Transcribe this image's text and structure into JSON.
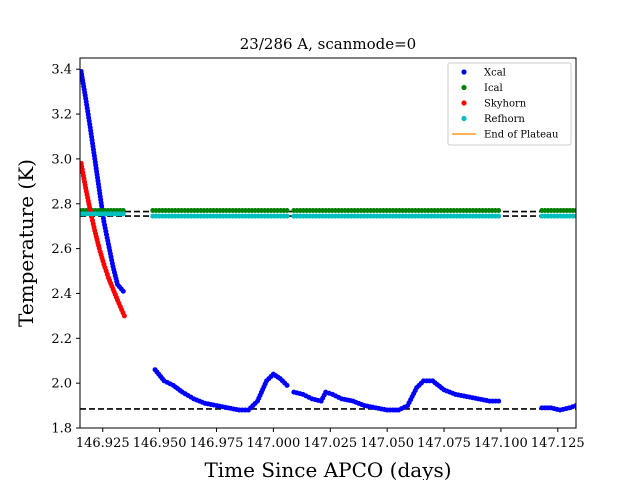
{
  "chart_data": {
    "type": "scatter",
    "title": "23/286 A, scanmode=0",
    "xlabel": "Time Since APCO (days)",
    "ylabel": "Temperature (K)",
    "xlim": [
      146.915,
      147.133
    ],
    "ylim": [
      1.8,
      3.45
    ],
    "xticks": [
      146.925,
      146.95,
      146.975,
      147.0,
      147.025,
      147.05,
      147.075,
      147.1,
      147.125
    ],
    "xtick_labels": [
      "146.925",
      "146.950",
      "146.975",
      "147.000",
      "147.025",
      "147.050",
      "147.075",
      "147.100",
      "147.125"
    ],
    "yticks": [
      1.8,
      2.0,
      2.2,
      2.4,
      2.6,
      2.8,
      3.0,
      3.2,
      3.4
    ],
    "ytick_labels": [
      "1.8",
      "2.0",
      "2.2",
      "2.4",
      "2.6",
      "2.8",
      "3.0",
      "3.2",
      "3.4"
    ],
    "grid": false,
    "legend_position": "top-right",
    "series": [
      {
        "name": "Xcal",
        "color": "#0000ff",
        "segments": [
          [
            [
              146.9155,
              3.39
            ],
            [
              146.9175,
              3.27
            ],
            [
              146.9195,
              3.14
            ],
            [
              146.9215,
              3.0
            ],
            [
              146.9235,
              2.86
            ],
            [
              146.9255,
              2.72
            ],
            [
              146.9275,
              2.62
            ],
            [
              146.9295,
              2.52
            ],
            [
              146.9315,
              2.44
            ],
            [
              146.934,
              2.41
            ]
          ],
          [
            [
              146.948,
              2.06
            ],
            [
              146.952,
              2.01
            ],
            [
              146.956,
              1.99
            ],
            [
              146.96,
              1.96
            ],
            [
              146.965,
              1.93
            ],
            [
              146.97,
              1.91
            ],
            [
              146.975,
              1.9
            ],
            [
              146.98,
              1.89
            ],
            [
              146.985,
              1.88
            ],
            [
              146.989,
              1.88
            ],
            [
              146.993,
              1.92
            ],
            [
              146.997,
              2.01
            ],
            [
              147.0,
              2.04
            ],
            [
              147.003,
              2.02
            ],
            [
              147.006,
              1.99
            ]
          ],
          [
            [
              147.009,
              1.96
            ],
            [
              147.013,
              1.95
            ],
            [
              147.017,
              1.93
            ],
            [
              147.021,
              1.92
            ],
            [
              147.023,
              1.96
            ],
            [
              147.026,
              1.95
            ],
            [
              147.03,
              1.93
            ],
            [
              147.035,
              1.92
            ],
            [
              147.04,
              1.9
            ],
            [
              147.045,
              1.89
            ],
            [
              147.05,
              1.88
            ],
            [
              147.055,
              1.88
            ],
            [
              147.059,
              1.9
            ],
            [
              147.063,
              1.98
            ],
            [
              147.066,
              2.01
            ],
            [
              147.07,
              2.01
            ],
            [
              147.075,
              1.97
            ],
            [
              147.08,
              1.95
            ],
            [
              147.085,
              1.94
            ],
            [
              147.09,
              1.93
            ],
            [
              147.095,
              1.92
            ],
            [
              147.099,
              1.92
            ]
          ],
          [
            [
              147.118,
              1.89
            ],
            [
              147.122,
              1.89
            ],
            [
              147.126,
              1.88
            ],
            [
              147.13,
              1.89
            ],
            [
              147.133,
              1.9
            ]
          ]
        ]
      },
      {
        "name": "Ical",
        "color": "#008000",
        "segments": [
          [
            [
              146.915,
              2.77
            ],
            [
              146.934,
              2.77
            ]
          ],
          [
            [
              146.947,
              2.77
            ],
            [
              147.006,
              2.77
            ]
          ],
          [
            [
              147.009,
              2.77
            ],
            [
              147.099,
              2.77
            ]
          ],
          [
            [
              147.118,
              2.77
            ],
            [
              147.133,
              2.77
            ]
          ]
        ]
      },
      {
        "name": "Skyhorn",
        "color": "#ff0000",
        "segments": [
          [
            [
              146.9155,
              2.98
            ],
            [
              146.9175,
              2.87
            ],
            [
              146.9195,
              2.77
            ],
            [
              146.9215,
              2.68
            ],
            [
              146.9235,
              2.6
            ],
            [
              146.9255,
              2.53
            ],
            [
              146.9275,
              2.47
            ],
            [
              146.9295,
              2.42
            ],
            [
              146.9315,
              2.37
            ],
            [
              146.9345,
              2.3
            ]
          ]
        ]
      },
      {
        "name": "Refhorn",
        "color": "#00bfbf",
        "segments": [
          [
            [
              146.915,
              2.755
            ],
            [
              146.934,
              2.755
            ]
          ],
          [
            [
              146.947,
              2.745
            ],
            [
              147.006,
              2.745
            ]
          ],
          [
            [
              147.009,
              2.745
            ],
            [
              147.099,
              2.745
            ]
          ],
          [
            [
              147.118,
              2.745
            ],
            [
              147.133,
              2.745
            ]
          ]
        ]
      }
    ],
    "dashed_lines": [
      {
        "y": 2.765,
        "color": "#000000"
      },
      {
        "y": 2.745,
        "color": "#000000"
      },
      {
        "y": 1.885,
        "color": "#000000"
      }
    ],
    "legend": [
      {
        "label": "Xcal",
        "kind": "marker",
        "color": "#0000ff"
      },
      {
        "label": "Ical",
        "kind": "marker",
        "color": "#008000"
      },
      {
        "label": "Skyhorn",
        "kind": "marker",
        "color": "#ff0000"
      },
      {
        "label": "Refhorn",
        "kind": "marker",
        "color": "#00bfbf"
      },
      {
        "label": "End of Plateau",
        "kind": "line",
        "color": "#ff9a1f"
      }
    ]
  }
}
